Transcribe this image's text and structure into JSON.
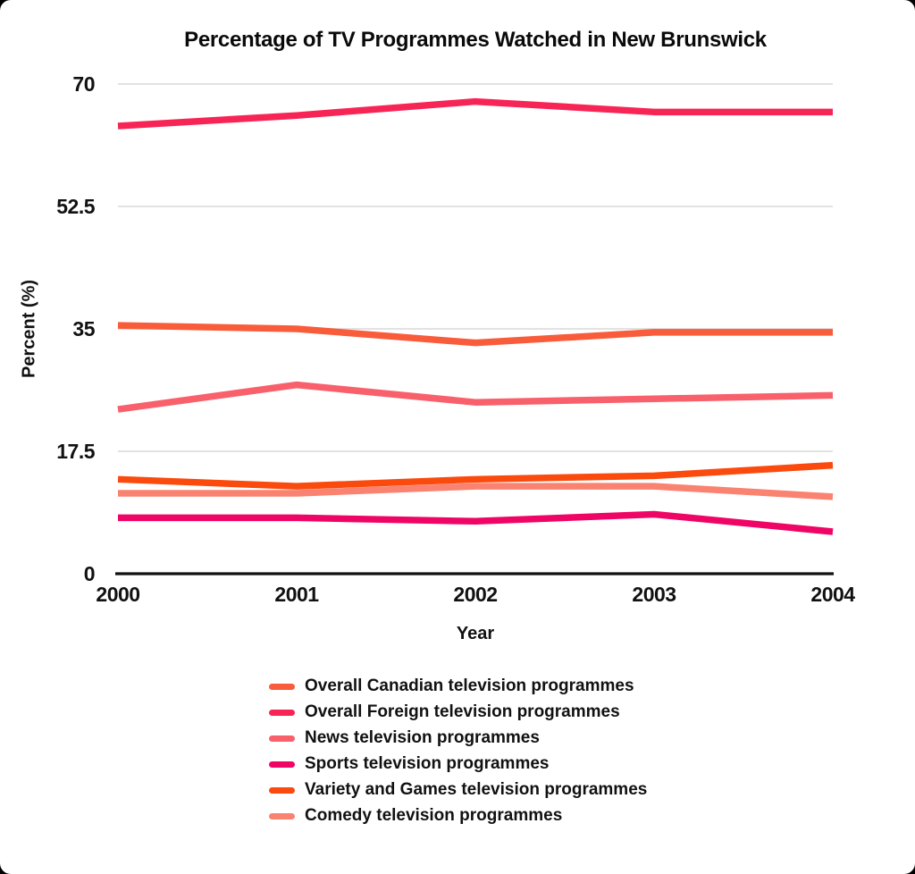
{
  "page": {
    "outer_background": "#000000",
    "card_background": "#ffffff",
    "text_color": "#111111",
    "grid_color": "#d9d9d9",
    "axis_color": "#111111"
  },
  "chart_data": {
    "type": "line",
    "title": "Percentage of TV Programmes Watched in New Brunswick",
    "xlabel": "Year",
    "ylabel": "Percent (%)",
    "x": [
      "2000",
      "2001",
      "2002",
      "2003",
      "2004"
    ],
    "yticks": [
      0,
      17.5,
      35,
      52.5,
      70
    ],
    "ylim": [
      0,
      70
    ],
    "grid": true,
    "legend_position": "bottom",
    "series": [
      {
        "name": "Overall Canadian television programmes",
        "color": "#F85C3A",
        "values": [
          35.5,
          35,
          33,
          34.5,
          34.5
        ]
      },
      {
        "name": "Overall Foreign television programmes",
        "color": "#F72556",
        "values": [
          64,
          65.5,
          67.5,
          66,
          66
        ]
      },
      {
        "name": "News television programmes",
        "color": "#F8606C",
        "values": [
          23.5,
          27,
          24.5,
          25,
          25.5
        ]
      },
      {
        "name": "Sports television programmes",
        "color": "#EE0566",
        "values": [
          8,
          8,
          7.5,
          8.5,
          6
        ]
      },
      {
        "name": "Variety and Games television programmes",
        "color": "#FA4A0E",
        "values": [
          13.5,
          12.5,
          13.5,
          14,
          15.5
        ]
      },
      {
        "name": "Comedy television programmes",
        "color": "#FA8270",
        "values": [
          11.5,
          11.5,
          12.5,
          12.5,
          11
        ]
      }
    ]
  }
}
